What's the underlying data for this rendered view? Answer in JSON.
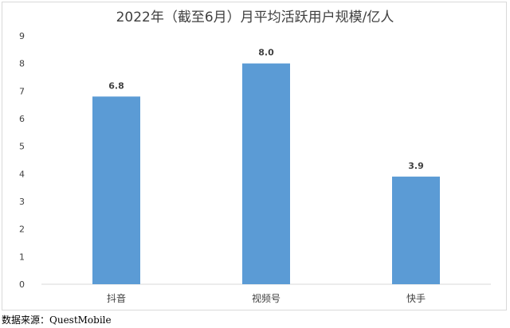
{
  "chart_data": {
    "type": "bar",
    "title": "2022年（截至6月）月平均活跃用户规模/亿人",
    "categories": [
      "抖音",
      "视频号",
      "快手"
    ],
    "values": [
      6.8,
      8.0,
      3.9
    ],
    "data_labels": [
      "6.8",
      "8.0",
      "3.9"
    ],
    "ylim": [
      0,
      9
    ],
    "yticks": [
      0,
      1,
      2,
      3,
      4,
      5,
      6,
      7,
      8,
      9
    ],
    "grid": false,
    "legend": "none",
    "bar_color": "#5b9bd5"
  },
  "source_text": "数据来源：QuestMobile"
}
